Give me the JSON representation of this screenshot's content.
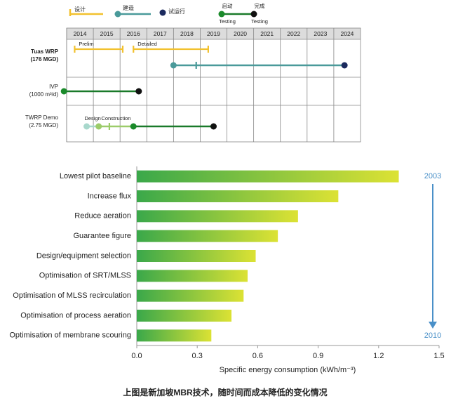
{
  "chart_data": [
    {
      "type": "timeline",
      "legend": [
        {
          "name": "设计",
          "color": "#f2c12e"
        },
        {
          "name": "建造",
          "color": "#4a9a9a"
        },
        {
          "name": "试运行",
          "color": "#1b2a5e"
        }
      ],
      "testing_legend": {
        "line_color": "#1a7a2a",
        "items": [
          {
            "name": "启动",
            "label": "Testing",
            "color": "#1a8a2a"
          },
          {
            "name": "完成",
            "label": "Testing",
            "color": "#111111"
          }
        ]
      },
      "xlim": [
        2014,
        2025
      ],
      "xticks": [
        2014,
        2015,
        2016,
        2017,
        2018,
        2019,
        2020,
        2021,
        2022,
        2023,
        2024
      ],
      "rows": [
        {
          "label": "Tuas WRP",
          "sublabel": "(176 MGD)",
          "segments": [
            {
              "name": "Prelim",
              "style": "bracket",
              "color": "#f2c12e",
              "start": 2014.3,
              "end": 2016.1
            },
            {
              "name": "Detailed",
              "style": "bracket",
              "color": "#f2c12e",
              "start": 2016.5,
              "end": 2019.3
            },
            {
              "style": "line",
              "color": "#4a9a9a",
              "start": 2018.0,
              "end": 2024.4,
              "tick": 2018.85
            }
          ],
          "points": [
            {
              "x": 2018.0,
              "color": "#4a9a9a"
            },
            {
              "x": 2024.4,
              "color": "#1b2a5e"
            }
          ]
        },
        {
          "label": "IVP",
          "sublabel": "(1000 m³/d)",
          "segments": [
            {
              "style": "line",
              "color": "#1a7a2a",
              "start": 2013.9,
              "end": 2016.7
            }
          ],
          "points": [
            {
              "x": 2013.9,
              "color": "#1a8a2a"
            },
            {
              "x": 2016.7,
              "color": "#111111"
            }
          ]
        },
        {
          "label": "TWRP Demo",
          "sublabel": "(2.75 MGD)",
          "segments": [
            {
              "name": "Design",
              "style": "line",
              "color": "#a8d8cc",
              "start": 2014.75,
              "end": 2015.2
            },
            {
              "name": "Construction",
              "style": "line",
              "color": "#9ccc6a",
              "start": 2015.2,
              "end": 2016.5,
              "tick": 2015.6
            },
            {
              "style": "line",
              "color": "#1a7a2a",
              "start": 2016.5,
              "end": 2019.5
            }
          ],
          "points": [
            {
              "x": 2014.75,
              "color": "#a8d8cc"
            },
            {
              "x": 2015.2,
              "color": "#9ccc6a"
            },
            {
              "x": 2016.5,
              "color": "#1a8a2a"
            },
            {
              "x": 2019.5,
              "color": "#111111"
            }
          ]
        }
      ]
    },
    {
      "type": "bar",
      "orientation": "horizontal",
      "categories": [
        "Lowest pilot baseline",
        "Increase flux",
        "Reduce aeration",
        "Guarantee figure",
        "Design/equipment selection",
        "Optimisation of SRT/MLSS",
        "Optimisation of MLSS recirculation",
        "Optimisation of process aeration",
        "Optimisation of membrane scouring"
      ],
      "values": [
        1.3,
        1.0,
        0.8,
        0.7,
        0.59,
        0.55,
        0.53,
        0.47,
        0.37
      ],
      "color_gradient": [
        "#3aa84a",
        "#dce234"
      ],
      "xlim": [
        0,
        1.5
      ],
      "xticks": [
        {
          "value": 0,
          "label": "0.0"
        },
        0.3,
        0.6,
        0.9,
        1.2,
        1.5
      ],
      "xlabel": "Specific energy consumption (kWh/m⁻³)",
      "annotation": {
        "start": "2003",
        "end": "2010",
        "color": "#4a90c8"
      }
    }
  ],
  "caption": "上图是新加坡MBR技术，随时间而成本降低的变化情况"
}
